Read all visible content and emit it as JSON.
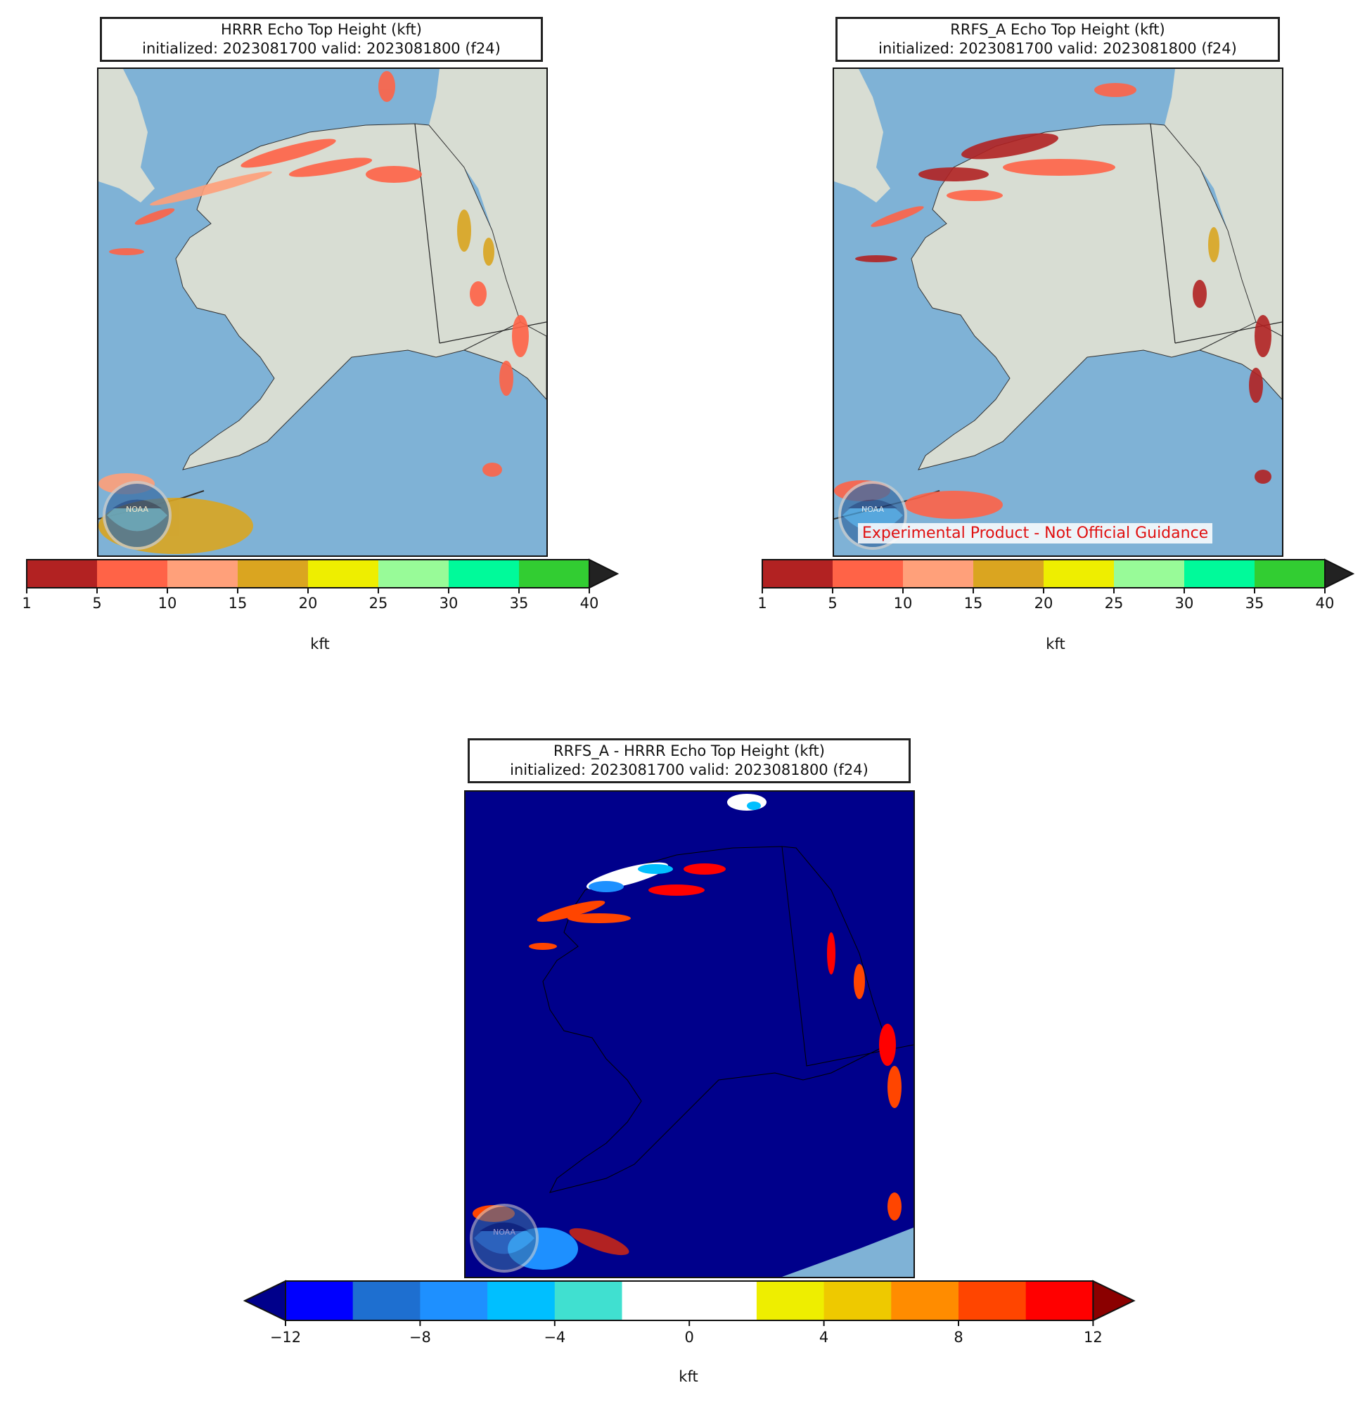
{
  "panels": [
    {
      "id": "hrrr",
      "title_line1": "HRRR Echo Top Height (kft)",
      "title_line2": "initialized: 2023081700 valid: 2023081800 (f24)"
    },
    {
      "id": "rrfs",
      "title_line1": "RRFS_A Echo Top Height (kft)",
      "title_line2": "initialized: 2023081700 valid: 2023081800 (f24)",
      "watermark": "Experimental Product - Not Official Guidance"
    },
    {
      "id": "diff",
      "title_line1": "RRFS_A - HRRR Echo Top Height (kft)",
      "title_line2": "initialized: 2023081700 valid: 2023081800 (f24)"
    }
  ],
  "colorbar_abs": {
    "ticks": [
      "1",
      "5",
      "10",
      "15",
      "20",
      "25",
      "30",
      "35",
      "40"
    ],
    "colors": [
      "#b22222",
      "#ff6347",
      "#ffa07a",
      "#daa520",
      "#eeee00",
      "#98fb98",
      "#00fa9a",
      "#32cd32"
    ],
    "extend_color": "#222222",
    "unit": "kft"
  },
  "colorbar_diff": {
    "ticks": [
      "−12",
      "−8",
      "−4",
      "0",
      "4",
      "8",
      "12"
    ],
    "colors": [
      "#0000ff",
      "#1e6fd0",
      "#1e90ff",
      "#00bfff",
      "#40e0d0",
      "#ffffff",
      "#ffffff",
      "#eeee00",
      "#eec900",
      "#ff8c00",
      "#ff4500",
      "#ff0000"
    ],
    "extend_low": "#00008b",
    "extend_high": "#8b0000",
    "unit": "kft"
  },
  "colors": {
    "ocean": "#7fb2d6",
    "land": "#d8ddd3",
    "diff_background": "#00008b",
    "border": "#222222"
  },
  "icons": [
    "noaa-logo"
  ]
}
